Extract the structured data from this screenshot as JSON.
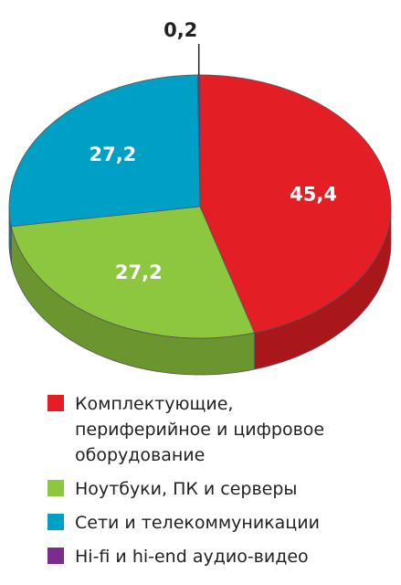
{
  "chart_data": {
    "type": "pie",
    "categories": [
      "Комплектующие, периферийное и цифровое оборудование",
      "Ноутбуки, ПК и серверы",
      "Сети и телекоммуникации",
      "Hi-fi и hi-end аудио-видео"
    ],
    "values": [
      45.4,
      27.2,
      27.2,
      0.2
    ],
    "value_labels": [
      "45,4",
      "27,2",
      "27,2",
      "0,2"
    ],
    "colors": [
      "#e31e24",
      "#8dc63f",
      "#00a0c6",
      "#7b2d8e"
    ]
  }
}
